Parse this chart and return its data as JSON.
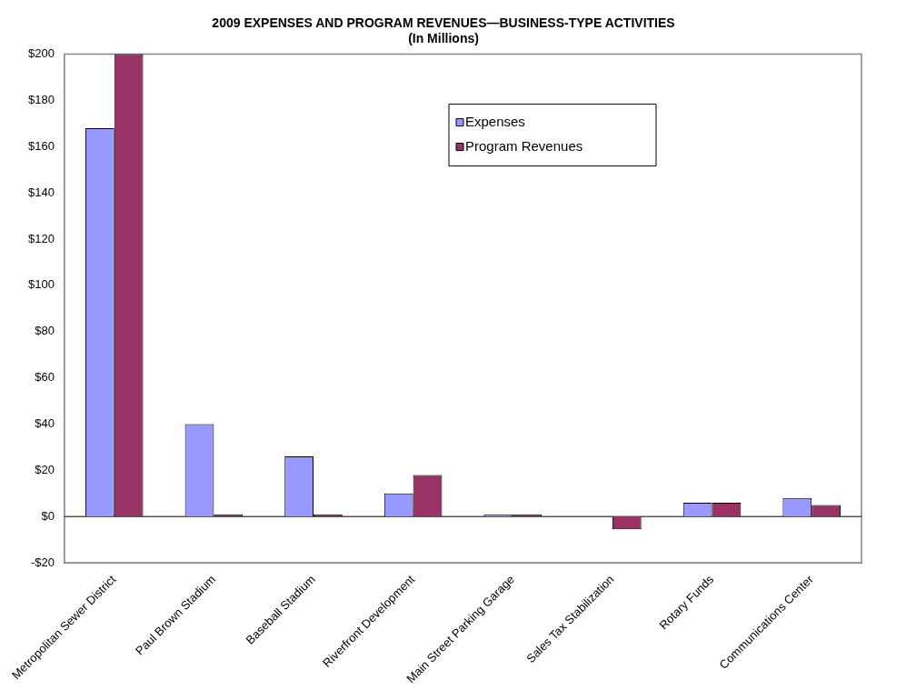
{
  "chart_data": {
    "type": "bar",
    "title": "2009 EXPENSES AND PROGRAM REVENUES—BUSINESS-TYPE ACTIVITIES",
    "subtitle": "(In Millions)",
    "categories": [
      "Metropolitan Sewer District",
      "Paul Brown Stadium",
      "Baseball Stadium",
      "Riverfront Development",
      "Main Street Parking Garage",
      "Sales Tax Stabilization",
      "Rotary Funds",
      "Communications Center"
    ],
    "series": [
      {
        "name": "Expenses",
        "color": "#9999ff",
        "values": [
          168,
          40,
          26,
          10,
          1,
          0,
          6,
          8
        ]
      },
      {
        "name": "Program Revenues",
        "color": "#993366",
        "values": [
          200,
          1,
          1,
          18,
          1,
          -5.5,
          6,
          5
        ]
      }
    ],
    "ylim": [
      -20,
      200
    ],
    "yticks": [
      {
        "value": -20,
        "label": "-$20"
      },
      {
        "value": 0,
        "label": "$0"
      },
      {
        "value": 20,
        "label": "$20"
      },
      {
        "value": 40,
        "label": "$40"
      },
      {
        "value": 60,
        "label": "$60"
      },
      {
        "value": 80,
        "label": "$80"
      },
      {
        "value": 100,
        "label": "$100"
      },
      {
        "value": 120,
        "label": "$120"
      },
      {
        "value": 140,
        "label": "$140"
      },
      {
        "value": 160,
        "label": "$160"
      },
      {
        "value": 180,
        "label": "$180"
      },
      {
        "value": 200,
        "label": "$200"
      }
    ],
    "ref_lines": [
      {
        "axis": "y",
        "value": 0,
        "color": "#000000"
      }
    ],
    "grid": false,
    "legend": "top right"
  }
}
